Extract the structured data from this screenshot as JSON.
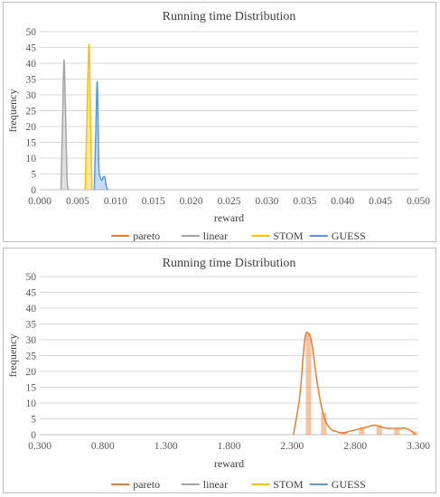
{
  "chart_data": [
    {
      "type": "area",
      "title": "Running time Distribution",
      "xlabel": "reward",
      "ylabel": "frequency",
      "xlim": [
        0.0,
        0.05
      ],
      "ylim": [
        0,
        50
      ],
      "x_ticks": [
        "0.000",
        "0.005",
        "0.010",
        "0.015",
        "0.020",
        "0.025",
        "0.030",
        "0.035",
        "0.040",
        "0.045",
        "0.050"
      ],
      "y_ticks": [
        "0",
        "5",
        "10",
        "15",
        "20",
        "25",
        "30",
        "35",
        "40",
        "45",
        "50"
      ],
      "grid": true,
      "legend_position": "bottom",
      "legend": [
        "pareto",
        "linear",
        "STOM",
        "GUESS"
      ],
      "series": [
        {
          "name": "pareto",
          "color": "#ED7D31",
          "points": []
        },
        {
          "name": "linear",
          "color": "#A5A5A5",
          "points": [
            [
              0.0028,
              0
            ],
            [
              0.003,
              20
            ],
            [
              0.0032,
              41
            ],
            [
              0.0034,
              25
            ],
            [
              0.0036,
              4
            ],
            [
              0.0038,
              0
            ]
          ]
        },
        {
          "name": "STOM",
          "color": "#FFC000",
          "points": [
            [
              0.006,
              0
            ],
            [
              0.0062,
              20
            ],
            [
              0.0065,
              46
            ],
            [
              0.0067,
              22
            ],
            [
              0.0069,
              0
            ]
          ]
        },
        {
          "name": "GUESS",
          "color": "#5B9BD5",
          "points": [
            [
              0.0072,
              0
            ],
            [
              0.0074,
              18
            ],
            [
              0.0076,
              34
            ],
            [
              0.0078,
              8
            ],
            [
              0.008,
              4
            ],
            [
              0.0082,
              3
            ],
            [
              0.0084,
              4
            ],
            [
              0.0086,
              4
            ],
            [
              0.0088,
              1
            ],
            [
              0.009,
              0
            ]
          ]
        }
      ]
    },
    {
      "type": "area",
      "title": "Running time Distribution",
      "xlabel": "reward",
      "ylabel": "frequency",
      "xlim": [
        0.3,
        3.3
      ],
      "ylim": [
        0,
        50
      ],
      "x_ticks": [
        "0.300",
        "0.800",
        "1.300",
        "1.800",
        "2.300",
        "2.800",
        "3.300"
      ],
      "y_ticks": [
        "0",
        "5",
        "10",
        "15",
        "20",
        "25",
        "30",
        "35",
        "40",
        "45",
        "50"
      ],
      "grid": true,
      "legend_position": "bottom",
      "legend": [
        "pareto",
        "linear",
        "STOM",
        "GUESS"
      ],
      "series": [
        {
          "name": "pareto",
          "color": "#ED7D31",
          "points": [
            [
              2.31,
              0
            ],
            [
              2.36,
              12
            ],
            [
              2.4,
              30
            ],
            [
              2.43,
              32
            ],
            [
              2.46,
              28
            ],
            [
              2.5,
              16
            ],
            [
              2.55,
              6
            ],
            [
              2.6,
              2
            ],
            [
              2.65,
              1
            ],
            [
              2.7,
              0.5
            ],
            [
              2.75,
              1
            ],
            [
              2.8,
              1.5
            ],
            [
              2.85,
              2
            ],
            [
              2.9,
              2.5
            ],
            [
              2.95,
              3
            ],
            [
              3.0,
              2.5
            ],
            [
              3.05,
              2
            ],
            [
              3.1,
              2
            ],
            [
              3.15,
              2
            ],
            [
              3.2,
              2
            ],
            [
              3.25,
              1
            ],
            [
              3.28,
              0
            ]
          ]
        },
        {
          "name": "linear",
          "color": "#A5A5A5",
          "points": []
        },
        {
          "name": "STOM",
          "color": "#FFC000",
          "points": []
        },
        {
          "name": "GUESS",
          "color": "#5B9BD5",
          "points": []
        }
      ],
      "hist_bars": {
        "series": "pareto",
        "x": [
          2.43,
          2.55,
          2.71,
          2.85,
          2.99,
          3.13,
          3.27
        ],
        "values": [
          32,
          7,
          1,
          2,
          3,
          2,
          1
        ]
      }
    }
  ]
}
